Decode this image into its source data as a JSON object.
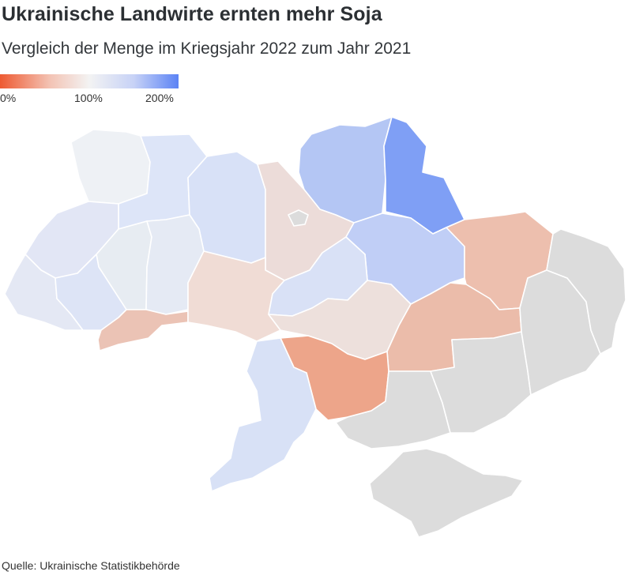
{
  "title": "Ukrainische Landwirte ernten mehr Soja",
  "subtitle": "Vergleich der Menge im Kriegsjahr 2022 zum Jahr 2021",
  "legend": {
    "labels": [
      "0%",
      "100%",
      "200%"
    ],
    "colors": {
      "min": "#ee5a32",
      "mid": "#f3f3f3",
      "max": "#5b83f5",
      "no_data": "#dcdcdc"
    }
  },
  "source": "Quelle: Ukrainische Statistikbehörde",
  "regions": {
    "volyn": "#eef1f5",
    "rivne": "#dde5f8",
    "zhytomyr": "#d8e1f7",
    "chernihiv": "#b4c6f4",
    "sumy": "#7f9ff5",
    "lviv": "#e2e6f5",
    "ternopil": "#e7ecf2",
    "khmelnytskyi": "#e5eaf4",
    "kyiv": "#ecdcd9",
    "kyiv_city": "#dcdcdc",
    "poltava": "#c0cef6",
    "kharkiv": "#edbfae",
    "zakarpattia": "#e4e8f4",
    "ivano_frankivsk": "#dde4f6",
    "chernivtsi": "#ebc3b5",
    "vinnytsia": "#f0dcd5",
    "cherkasy": "#d9e1f6",
    "kirovohrad": "#ede0dc",
    "dnipropetrovsk": "#ebbcaa",
    "mykolaiv": "#eda58a",
    "odesa": "#d8e1f6",
    "kherson": "#dcdcdc",
    "zaporizhzhia": "#dcdcdc",
    "donetsk": "#dcdcdc",
    "luhansk": "#dcdcdc",
    "crimea": "#dcdcdc"
  }
}
